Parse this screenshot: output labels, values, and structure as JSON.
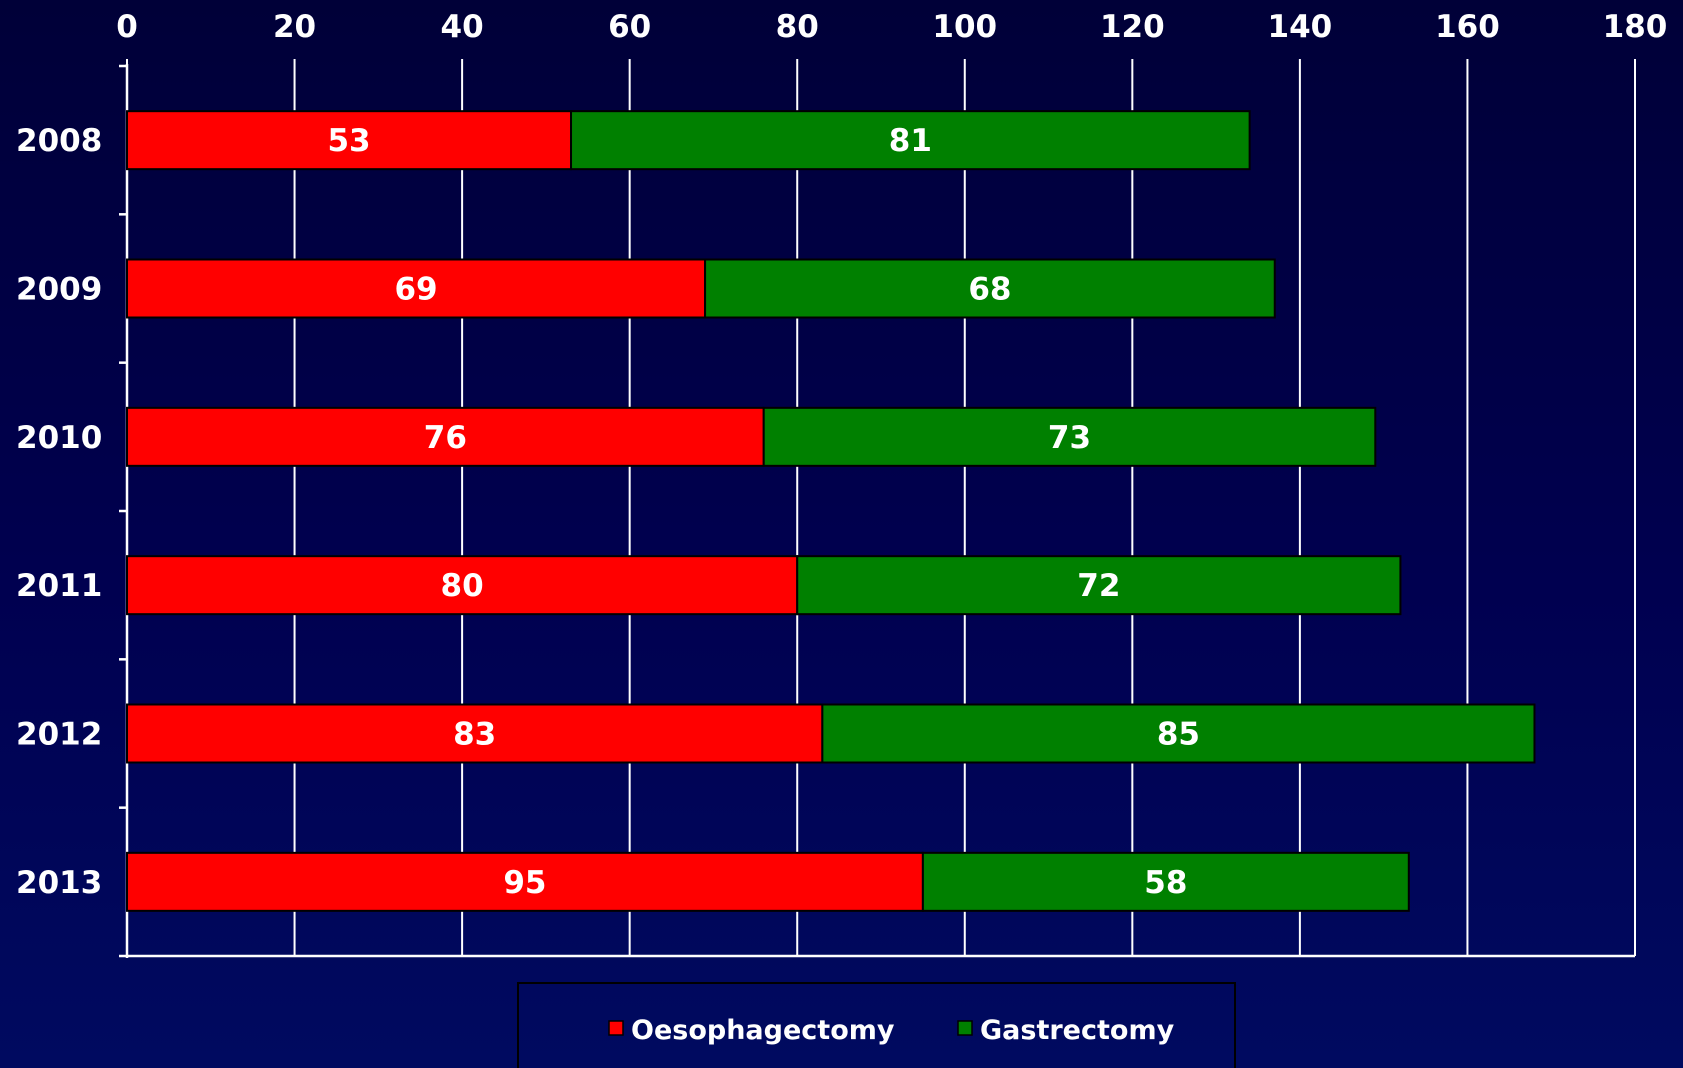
{
  "chart_data": {
    "type": "bar",
    "orientation": "horizontal",
    "stacked": true,
    "categories": [
      "2008",
      "2009",
      "2010",
      "2011",
      "2012",
      "2013"
    ],
    "series": [
      {
        "name": "Oesophagectomy",
        "color": "#ff0000",
        "values": [
          53,
          69,
          76,
          80,
          83,
          95
        ]
      },
      {
        "name": "Gastrectomy",
        "color": "#008000",
        "values": [
          81,
          68,
          73,
          72,
          85,
          58
        ]
      }
    ],
    "xlim": [
      0,
      180
    ],
    "xticks": [
      0,
      20,
      40,
      60,
      80,
      100,
      120,
      140,
      160,
      180
    ],
    "x_axis_position": "top",
    "grid": "vertical",
    "legend_position": "bottom-center",
    "data_labels": true,
    "colors": {
      "background": "#000048",
      "grid": "#ffffff",
      "text": "#ffffff",
      "bar_outline": "#000000"
    }
  }
}
